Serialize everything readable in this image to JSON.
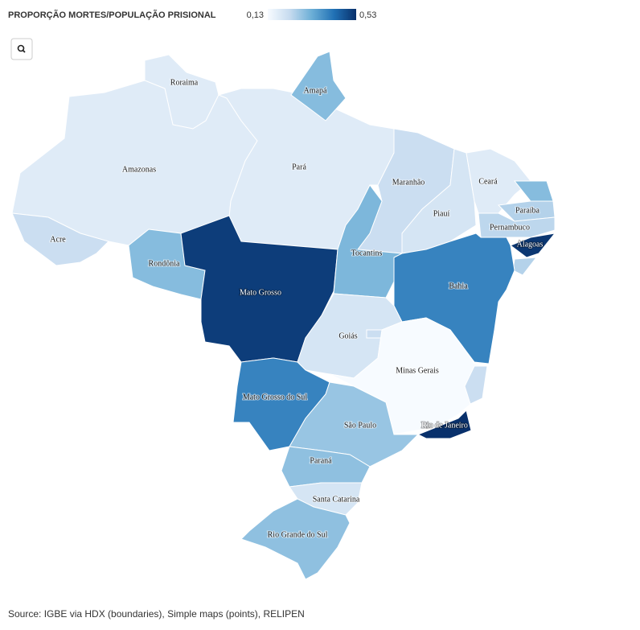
{
  "map": {
    "title": "PROPORÇÃO MORTES/POPULAÇÃO PRISIONAL",
    "scale": {
      "min": {
        "value": 0.13,
        "label": "0,13"
      },
      "max": {
        "value": 0.53,
        "label": "0,53"
      },
      "colors": [
        "#f7fbff",
        "#c6dbef",
        "#6baed6",
        "#2171b5",
        "#08306b"
      ]
    },
    "regions": [
      {
        "name": "Roraima",
        "value": 0.18
      },
      {
        "name": "Amazonas",
        "value": 0.18
      },
      {
        "name": "Pará",
        "value": 0.18
      },
      {
        "name": "Amapá",
        "value": 0.3
      },
      {
        "name": "Acre",
        "value": 0.22
      },
      {
        "name": "Rondônia",
        "value": 0.3
      },
      {
        "name": "Mato Grosso",
        "value": 0.51
      },
      {
        "name": "Maranhão",
        "value": 0.22
      },
      {
        "name": "Tocantins",
        "value": 0.31
      },
      {
        "name": "Piauí",
        "value": 0.2
      },
      {
        "name": "Ceará",
        "value": 0.18
      },
      {
        "name": null,
        "value": 0.3
      },
      {
        "name": "Paraíba",
        "value": 0.25
      },
      {
        "name": "Pernambuco",
        "value": 0.24
      },
      {
        "name": "Alagoas",
        "value": 0.52
      },
      {
        "name": null,
        "value": 0.25
      },
      {
        "name": "Bahia",
        "value": 0.4
      },
      {
        "name": "Goiás",
        "value": 0.2
      },
      {
        "name": null,
        "value": 0.22
      },
      {
        "name": "Minas Gerais",
        "value": 0.13
      },
      {
        "name": null,
        "value": 0.22
      },
      {
        "name": "Mato Grosso do Sul",
        "value": 0.4
      },
      {
        "name": "São Paulo",
        "value": 0.28
      },
      {
        "name": "Rio de Janeiro",
        "value": 0.53
      },
      {
        "name": "Paraná",
        "value": 0.29
      },
      {
        "name": "Santa Catarina",
        "value": 0.2
      },
      {
        "name": "Rio Grande do Sul",
        "value": 0.29
      }
    ],
    "source": "Source: IGBE via HDX (boundaries), Simple maps (points), RELIPEN"
  }
}
